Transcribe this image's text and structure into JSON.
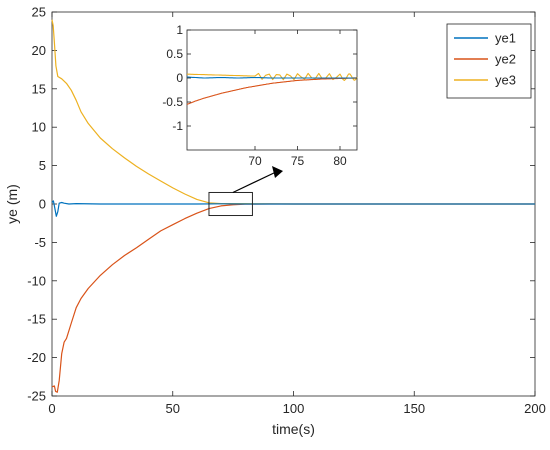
{
  "chart_data": {
    "type": "line",
    "xlabel": "time(s)",
    "ylabel": "ye (m)",
    "xlim": [
      0,
      200
    ],
    "ylim": [
      -25,
      25
    ],
    "xticks": [
      0,
      50,
      100,
      150,
      200
    ],
    "yticks": [
      -25,
      -20,
      -15,
      -10,
      -5,
      0,
      5,
      10,
      15,
      20,
      25
    ],
    "grid": false,
    "legend_position": "top-right",
    "series": [
      {
        "name": "ye1",
        "color": "#0072bd",
        "points": [
          [
            0,
            0.2
          ],
          [
            0.6,
            0.4
          ],
          [
            1.2,
            -0.6
          ],
          [
            1.8,
            -1.6
          ],
          [
            2.4,
            -1.0
          ],
          [
            3,
            0.1
          ],
          [
            4,
            0.2
          ],
          [
            5,
            0.1
          ],
          [
            7,
            0
          ],
          [
            10,
            0.05
          ],
          [
            20,
            0
          ],
          [
            40,
            0
          ],
          [
            60,
            0
          ],
          [
            70,
            0.02
          ],
          [
            80,
            0
          ],
          [
            100,
            0
          ],
          [
            150,
            0
          ],
          [
            200,
            0
          ]
        ]
      },
      {
        "name": "ye2",
        "color": "#d95319",
        "points": [
          [
            0,
            -23.8
          ],
          [
            1,
            -23.7
          ],
          [
            1.5,
            -24.4
          ],
          [
            2.2,
            -24.5
          ],
          [
            3,
            -23
          ],
          [
            4,
            -19.5
          ],
          [
            5,
            -18
          ],
          [
            6,
            -17.5
          ],
          [
            8,
            -15.5
          ],
          [
            10,
            -13.5
          ],
          [
            12,
            -12.3
          ],
          [
            15,
            -11
          ],
          [
            20,
            -9.3
          ],
          [
            25,
            -7.9
          ],
          [
            30,
            -6.7
          ],
          [
            35,
            -5.7
          ],
          [
            40,
            -4.6
          ],
          [
            45,
            -3.5
          ],
          [
            50,
            -2.7
          ],
          [
            55,
            -1.9
          ],
          [
            60,
            -1.2
          ],
          [
            65,
            -0.6
          ],
          [
            70,
            -0.25
          ],
          [
            75,
            -0.1
          ],
          [
            80,
            -0.03
          ],
          [
            90,
            0
          ],
          [
            100,
            0
          ],
          [
            150,
            0
          ],
          [
            200,
            0
          ]
        ]
      },
      {
        "name": "ye3",
        "color": "#edb120",
        "points": [
          [
            0,
            24
          ],
          [
            0.5,
            23.2
          ],
          [
            1,
            21
          ],
          [
            1.6,
            18
          ],
          [
            2.4,
            16.6
          ],
          [
            4,
            16.3
          ],
          [
            6,
            15.7
          ],
          [
            8,
            14.8
          ],
          [
            10,
            13.5
          ],
          [
            12,
            12
          ],
          [
            15,
            10.5
          ],
          [
            20,
            8.6
          ],
          [
            25,
            7.2
          ],
          [
            30,
            6
          ],
          [
            35,
            4.9
          ],
          [
            40,
            3.9
          ],
          [
            45,
            3
          ],
          [
            50,
            2.1
          ],
          [
            55,
            1.3
          ],
          [
            60,
            0.6
          ],
          [
            65,
            0.15
          ],
          [
            70,
            0.05
          ],
          [
            80,
            0.05
          ],
          [
            100,
            0
          ],
          [
            150,
            0
          ],
          [
            200,
            0
          ]
        ]
      }
    ],
    "inset": {
      "xlim": [
        62,
        82
      ],
      "ylim": [
        -1.5,
        1
      ],
      "xticks": [
        70,
        75,
        80
      ],
      "yticks": [
        -1,
        -0.5,
        0,
        0.5,
        1
      ],
      "series": [
        {
          "name": "ye1",
          "points": [
            [
              62,
              0.02
            ],
            [
              64,
              0
            ],
            [
              66,
              0.01
            ],
            [
              68,
              0
            ],
            [
              70,
              0.01
            ],
            [
              72,
              0
            ],
            [
              74,
              0
            ],
            [
              76,
              0
            ],
            [
              78,
              0
            ],
            [
              80,
              0
            ],
            [
              82,
              0
            ]
          ]
        },
        {
          "name": "ye2",
          "points": [
            [
              62,
              -0.55
            ],
            [
              63,
              -0.48
            ],
            [
              64,
              -0.42
            ],
            [
              65,
              -0.37
            ],
            [
              66,
              -0.32
            ],
            [
              67,
              -0.28
            ],
            [
              68,
              -0.24
            ],
            [
              69,
              -0.2
            ],
            [
              70,
              -0.17
            ],
            [
              71,
              -0.14
            ],
            [
              72,
              -0.11
            ],
            [
              73,
              -0.09
            ],
            [
              74,
              -0.07
            ],
            [
              75,
              -0.05
            ],
            [
              76,
              -0.04
            ],
            [
              77,
              -0.03
            ],
            [
              78,
              -0.02
            ],
            [
              80,
              -0.01
            ],
            [
              82,
              0
            ]
          ]
        },
        {
          "name": "ye3",
          "oscillate": {
            "from": 70,
            "amp": 0.07,
            "period": 1.2
          },
          "points": [
            [
              62,
              0.08
            ],
            [
              64,
              0.07
            ],
            [
              66,
              0.06
            ],
            [
              68,
              0.05
            ],
            [
              70,
              0.04
            ],
            [
              75,
              0.03
            ],
            [
              80,
              0.02
            ],
            [
              82,
              0.02
            ]
          ]
        }
      ]
    },
    "zoom_box": {
      "x": [
        65,
        83
      ],
      "y": [
        -1.5,
        1.5
      ]
    }
  }
}
